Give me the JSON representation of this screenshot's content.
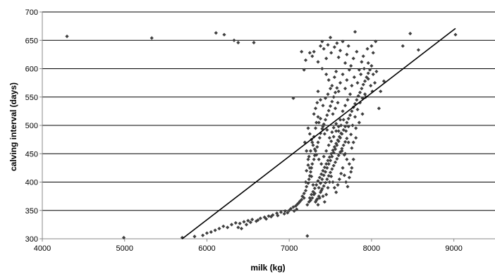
{
  "chart_data": {
    "type": "scatter",
    "xlabel": "milk (kg)",
    "ylabel": "calving interval (days)",
    "xlim": [
      4000,
      9500
    ],
    "ylim": [
      300,
      700
    ],
    "x_ticks": [
      "4000",
      "5000",
      "6000",
      "7000",
      "8000",
      "9000"
    ],
    "y_ticks": [
      "300",
      "350",
      "400",
      "450",
      "500",
      "550",
      "600",
      "650",
      "700"
    ],
    "grid": "horizontal",
    "legend": "none",
    "marker_color": "#3f3f3f",
    "trendline": {
      "x": [
        5700,
        9020
      ],
      "y": [
        300,
        671
      ]
    },
    "points": [
      [
        4300,
        657
      ],
      [
        4990,
        302
      ],
      [
        5330,
        654
      ],
      [
        5700,
        302
      ],
      [
        5850,
        304
      ],
      [
        6110,
        663
      ],
      [
        6210,
        660
      ],
      [
        6330,
        650
      ],
      [
        6380,
        646
      ],
      [
        6570,
        646
      ],
      [
        5950,
        306
      ],
      [
        6000,
        310
      ],
      [
        6050,
        312
      ],
      [
        6100,
        315
      ],
      [
        6150,
        318
      ],
      [
        6200,
        322
      ],
      [
        6250,
        320
      ],
      [
        6300,
        325
      ],
      [
        6350,
        328
      ],
      [
        6400,
        327
      ],
      [
        6450,
        330
      ],
      [
        6500,
        332
      ],
      [
        6550,
        334
      ],
      [
        6600,
        331
      ],
      [
        6650,
        336
      ],
      [
        6700,
        338
      ],
      [
        6750,
        340
      ],
      [
        6800,
        342
      ],
      [
        6850,
        345
      ],
      [
        6900,
        347
      ],
      [
        6950,
        349
      ],
      [
        7000,
        350
      ],
      [
        7020,
        353
      ],
      [
        7050,
        356
      ],
      [
        7080,
        358
      ],
      [
        7100,
        361
      ],
      [
        7120,
        364
      ],
      [
        7130,
        366
      ],
      [
        7150,
        369
      ],
      [
        7180,
        372
      ],
      [
        6380,
        320
      ],
      [
        6420,
        318
      ],
      [
        6480,
        325
      ],
      [
        6530,
        329
      ],
      [
        6620,
        333
      ],
      [
        6720,
        335
      ],
      [
        6780,
        339
      ],
      [
        6860,
        341
      ],
      [
        6940,
        344
      ],
      [
        6980,
        346
      ],
      [
        7060,
        349
      ],
      [
        7090,
        352
      ],
      [
        7220,
        305
      ],
      [
        7160,
        375
      ],
      [
        7180,
        380
      ],
      [
        7200,
        385
      ],
      [
        7210,
        392
      ],
      [
        7230,
        398
      ],
      [
        7240,
        405
      ],
      [
        7250,
        411
      ],
      [
        7260,
        418
      ],
      [
        7270,
        425
      ],
      [
        7280,
        432
      ],
      [
        7300,
        440
      ],
      [
        7310,
        447
      ],
      [
        7320,
        455
      ],
      [
        7340,
        462
      ],
      [
        7350,
        470
      ],
      [
        7370,
        478
      ],
      [
        7380,
        486
      ],
      [
        7400,
        494
      ],
      [
        7420,
        502
      ],
      [
        7440,
        510
      ],
      [
        7460,
        518
      ],
      [
        7480,
        526
      ],
      [
        7500,
        534
      ],
      [
        7520,
        542
      ],
      [
        7540,
        550
      ],
      [
        7560,
        558
      ],
      [
        7580,
        566
      ],
      [
        7200,
        400
      ],
      [
        7210,
        420
      ],
      [
        7230,
        430
      ],
      [
        7240,
        445
      ],
      [
        7260,
        455
      ],
      [
        7280,
        470
      ],
      [
        7300,
        480
      ],
      [
        7320,
        495
      ],
      [
        7330,
        505
      ],
      [
        7350,
        515
      ],
      [
        7250,
        372
      ],
      [
        7270,
        378
      ],
      [
        7290,
        383
      ],
      [
        7310,
        389
      ],
      [
        7330,
        395
      ],
      [
        7350,
        402
      ],
      [
        7370,
        408
      ],
      [
        7390,
        414
      ],
      [
        7410,
        420
      ],
      [
        7430,
        426
      ],
      [
        7450,
        432
      ],
      [
        7470,
        438
      ],
      [
        7490,
        444
      ],
      [
        7510,
        450
      ],
      [
        7530,
        456
      ],
      [
        7550,
        462
      ],
      [
        7570,
        468
      ],
      [
        7590,
        474
      ],
      [
        7610,
        480
      ],
      [
        7630,
        486
      ],
      [
        7320,
        365
      ],
      [
        7340,
        370
      ],
      [
        7360,
        375
      ],
      [
        7380,
        382
      ],
      [
        7400,
        388
      ],
      [
        7420,
        393
      ],
      [
        7440,
        399
      ],
      [
        7460,
        405
      ],
      [
        7480,
        411
      ],
      [
        7500,
        417
      ],
      [
        7520,
        423
      ],
      [
        7540,
        429
      ],
      [
        7560,
        435
      ],
      [
        7580,
        441
      ],
      [
        7600,
        447
      ],
      [
        7620,
        453
      ],
      [
        7640,
        459
      ],
      [
        7660,
        465
      ],
      [
        7680,
        471
      ],
      [
        7700,
        477
      ],
      [
        7220,
        360
      ],
      [
        7240,
        365
      ],
      [
        7260,
        368
      ],
      [
        7280,
        372
      ],
      [
        7300,
        378
      ],
      [
        7360,
        390
      ],
      [
        7380,
        398
      ],
      [
        7400,
        405
      ],
      [
        7420,
        412
      ],
      [
        7440,
        418
      ],
      [
        7460,
        425
      ],
      [
        7480,
        432
      ],
      [
        7500,
        438
      ],
      [
        7520,
        445
      ],
      [
        7540,
        452
      ],
      [
        7560,
        458
      ],
      [
        7580,
        465
      ],
      [
        7600,
        472
      ],
      [
        7620,
        478
      ],
      [
        7640,
        485
      ],
      [
        7660,
        492
      ],
      [
        7680,
        498
      ],
      [
        7700,
        505
      ],
      [
        7720,
        512
      ],
      [
        7740,
        518
      ],
      [
        7760,
        525
      ],
      [
        7780,
        532
      ],
      [
        7800,
        538
      ],
      [
        7820,
        545
      ],
      [
        7840,
        552
      ],
      [
        7860,
        558
      ],
      [
        7880,
        565
      ],
      [
        7900,
        572
      ],
      [
        7920,
        578
      ],
      [
        7940,
        585
      ],
      [
        7960,
        592
      ],
      [
        7980,
        598
      ],
      [
        8000,
        605
      ],
      [
        8020,
        590
      ],
      [
        8040,
        575
      ],
      [
        7200,
        615
      ],
      [
        7250,
        628
      ],
      [
        7280,
        622
      ],
      [
        7300,
        630
      ],
      [
        7350,
        612
      ],
      [
        7380,
        640
      ],
      [
        7400,
        648
      ],
      [
        7420,
        635
      ],
      [
        7450,
        618
      ],
      [
        7470,
        642
      ],
      [
        7500,
        655
      ],
      [
        7510,
        628
      ],
      [
        7550,
        638
      ],
      [
        7580,
        645
      ],
      [
        7600,
        620
      ],
      [
        7620,
        632
      ],
      [
        7650,
        648
      ],
      [
        7680,
        610
      ],
      [
        7700,
        625
      ],
      [
        7720,
        640
      ],
      [
        7750,
        605
      ],
      [
        7780,
        618
      ],
      [
        7800,
        665
      ],
      [
        7820,
        630
      ],
      [
        7850,
        598
      ],
      [
        7880,
        612
      ],
      [
        7900,
        622
      ],
      [
        7950,
        635
      ],
      [
        8020,
        628
      ],
      [
        8050,
        648
      ],
      [
        7400,
        600
      ],
      [
        7450,
        590
      ],
      [
        7480,
        580
      ],
      [
        7520,
        570
      ],
      [
        7550,
        585
      ],
      [
        7570,
        595
      ],
      [
        7600,
        560
      ],
      [
        7620,
        575
      ],
      [
        7650,
        590
      ],
      [
        7680,
        565
      ],
      [
        7700,
        580
      ],
      [
        7730,
        598
      ],
      [
        7760,
        570
      ],
      [
        7790,
        585
      ],
      [
        7830,
        575
      ],
      [
        7870,
        590
      ],
      [
        7910,
        600
      ],
      [
        7960,
        582
      ],
      [
        7990,
        570
      ],
      [
        8010,
        560
      ],
      [
        7350,
        560
      ],
      [
        7380,
        545
      ],
      [
        7410,
        535
      ],
      [
        7440,
        548
      ],
      [
        7470,
        555
      ],
      [
        7500,
        565
      ],
      [
        7530,
        520
      ],
      [
        7560,
        530
      ],
      [
        7590,
        540
      ],
      [
        7620,
        510
      ],
      [
        7650,
        525
      ],
      [
        7680,
        535
      ],
      [
        7710,
        545
      ],
      [
        7740,
        555
      ],
      [
        7770,
        500
      ],
      [
        7800,
        515
      ],
      [
        7830,
        528
      ],
      [
        7860,
        540
      ],
      [
        7890,
        548
      ],
      [
        7920,
        555
      ],
      [
        7300,
        520
      ],
      [
        7320,
        530
      ],
      [
        7340,
        540
      ],
      [
        7360,
        505
      ],
      [
        7380,
        512
      ],
      [
        7410,
        498
      ],
      [
        7430,
        485
      ],
      [
        7460,
        492
      ],
      [
        7490,
        478
      ],
      [
        7520,
        488
      ],
      [
        7540,
        496
      ],
      [
        7570,
        503
      ],
      [
        7600,
        490
      ],
      [
        7630,
        500
      ],
      [
        7660,
        510
      ],
      [
        7690,
        490
      ],
      [
        7720,
        498
      ],
      [
        7750,
        484
      ],
      [
        7780,
        470
      ],
      [
        7810,
        478
      ],
      [
        7230,
        495
      ],
      [
        7250,
        485
      ],
      [
        7270,
        475
      ],
      [
        7290,
        465
      ],
      [
        7310,
        458
      ],
      [
        7330,
        448
      ],
      [
        7360,
        440
      ],
      [
        7390,
        432
      ],
      [
        7420,
        445
      ],
      [
        7450,
        455
      ],
      [
        7480,
        465
      ],
      [
        7510,
        472
      ],
      [
        7540,
        480
      ],
      [
        7570,
        490
      ],
      [
        7600,
        498
      ],
      [
        7640,
        455
      ],
      [
        7670,
        448
      ],
      [
        7700,
        440
      ],
      [
        7730,
        432
      ],
      [
        7760,
        425
      ],
      [
        7190,
        470
      ],
      [
        7210,
        455
      ],
      [
        7230,
        440
      ],
      [
        7250,
        425
      ],
      [
        7270,
        410
      ],
      [
        7290,
        395
      ],
      [
        7310,
        380
      ],
      [
        7330,
        368
      ],
      [
        7350,
        360
      ],
      [
        7370,
        372
      ],
      [
        7390,
        385
      ],
      [
        7410,
        375
      ],
      [
        7430,
        365
      ],
      [
        7450,
        378
      ],
      [
        7470,
        390
      ],
      [
        7490,
        400
      ],
      [
        7510,
        410
      ],
      [
        7530,
        400
      ],
      [
        7550,
        390
      ],
      [
        7570,
        382
      ],
      [
        7590,
        395
      ],
      [
        7610,
        405
      ],
      [
        7630,
        415
      ],
      [
        7650,
        425
      ],
      [
        7670,
        412
      ],
      [
        7690,
        400
      ],
      [
        7710,
        392
      ],
      [
        7730,
        408
      ],
      [
        7750,
        418
      ],
      [
        7780,
        440
      ],
      [
        7050,
        548
      ],
      [
        7150,
        630
      ],
      [
        7180,
        598
      ],
      [
        8110,
        560
      ],
      [
        8150,
        578
      ],
      [
        8380,
        640
      ],
      [
        8470,
        662
      ],
      [
        8570,
        633
      ],
      [
        9020,
        660
      ],
      [
        8060,
        595
      ],
      [
        8090,
        530
      ],
      [
        8000,
        640
      ],
      [
        7960,
        610
      ],
      [
        7930,
        550
      ],
      [
        7890,
        520
      ],
      [
        7850,
        505
      ],
      [
        7810,
        495
      ],
      [
        7760,
        460
      ],
      [
        7720,
        470
      ],
      [
        7680,
        450
      ]
    ]
  }
}
